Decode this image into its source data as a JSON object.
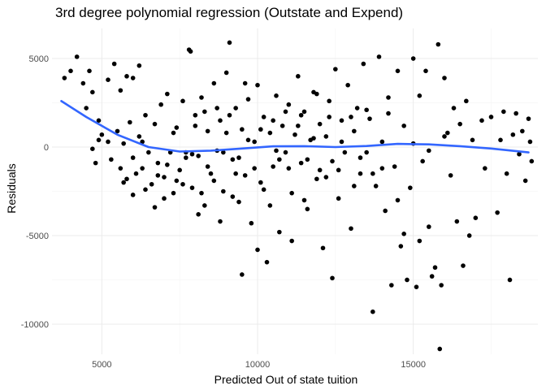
{
  "chart_data": {
    "type": "scatter",
    "title": "3rd degree polynomial regression (Outstate and Expend)",
    "xlabel": "Predicted Out of state tuition",
    "ylabel": "Residuals",
    "xlim": [
      3400,
      19000
    ],
    "ylim": [
      -11700,
      6700
    ],
    "x_ticks": [
      5000,
      10000,
      15000
    ],
    "x_tick_labels": [
      "5000",
      "10000",
      "15000"
    ],
    "y_ticks": [
      -10000,
      -5000,
      0,
      5000
    ],
    "y_tick_labels": [
      "-10000",
      "-5000",
      "0",
      "5000"
    ],
    "grid": true,
    "point_color": "#000000",
    "smooth_color": "#3366FF",
    "smooth_line": {
      "x": [
        3700,
        4500,
        5500,
        6500,
        7500,
        8500,
        9500,
        10500,
        11500,
        12500,
        13500,
        14500,
        15500,
        16500,
        17500,
        18700
      ],
      "y": [
        2600,
        1700,
        700,
        0,
        -250,
        -200,
        -80,
        40,
        50,
        0,
        60,
        180,
        150,
        50,
        -80,
        -300
      ]
    },
    "points": [
      [
        3800,
        3900
      ],
      [
        4000,
        4300
      ],
      [
        4200,
        5100
      ],
      [
        4400,
        3600
      ],
      [
        4600,
        4300
      ],
      [
        4700,
        3100
      ],
      [
        4900,
        1500
      ],
      [
        5000,
        700
      ],
      [
        5200,
        3800
      ],
      [
        5400,
        4700
      ],
      [
        5600,
        3200
      ],
      [
        5800,
        4000
      ],
      [
        6000,
        3900
      ],
      [
        6200,
        4600
      ],
      [
        4500,
        2200
      ],
      [
        4700,
        -100
      ],
      [
        4800,
        -900
      ],
      [
        4900,
        400
      ],
      [
        5200,
        300
      ],
      [
        5300,
        -700
      ],
      [
        5500,
        900
      ],
      [
        5600,
        -1200
      ],
      [
        5700,
        200
      ],
      [
        5800,
        -1800
      ],
      [
        5900,
        1400
      ],
      [
        6000,
        -2700
      ],
      [
        6100,
        -1500
      ],
      [
        6200,
        600
      ],
      [
        6300,
        -1200
      ],
      [
        6400,
        1800
      ],
      [
        6500,
        -300
      ],
      [
        6600,
        -2100
      ],
      [
        6700,
        1300
      ],
      [
        6800,
        -900
      ],
      [
        6900,
        2400
      ],
      [
        7000,
        -1700
      ],
      [
        7100,
        3000
      ],
      [
        7200,
        -300
      ],
      [
        7300,
        -2600
      ],
      [
        7400,
        1100
      ],
      [
        7500,
        -1300
      ],
      [
        7600,
        2600
      ],
      [
        7700,
        -600
      ],
      [
        7800,
        5500
      ],
      [
        7850,
        5400
      ],
      [
        7900,
        -2300
      ],
      [
        8000,
        1800
      ],
      [
        8100,
        -500
      ],
      [
        8200,
        2800
      ],
      [
        8300,
        -3300
      ],
      [
        8400,
        900
      ],
      [
        8500,
        -1500
      ],
      [
        8600,
        3600
      ],
      [
        8700,
        -200
      ],
      [
        8800,
        1500
      ],
      [
        8900,
        -2500
      ],
      [
        9000,
        4200
      ],
      [
        9100,
        5900
      ],
      [
        9200,
        -700
      ],
      [
        9300,
        2200
      ],
      [
        9400,
        -3100
      ],
      [
        9500,
        1000
      ],
      [
        9600,
        -1600
      ],
      [
        9700,
        2700
      ],
      [
        9800,
        -4300
      ],
      [
        9900,
        300
      ],
      [
        10000,
        3500
      ],
      [
        10100,
        -2000
      ],
      [
        10200,
        1700
      ],
      [
        10300,
        -6500
      ],
      [
        10400,
        800
      ],
      [
        10500,
        -1100
      ],
      [
        10600,
        2900
      ],
      [
        10700,
        -4800
      ],
      [
        10800,
        1200
      ],
      [
        10900,
        -300
      ],
      [
        11000,
        2400
      ],
      [
        11100,
        -2600
      ],
      [
        11200,
        700
      ],
      [
        11300,
        4000
      ],
      [
        11400,
        -900
      ],
      [
        11500,
        2000
      ],
      [
        11600,
        -3500
      ],
      [
        11700,
        400
      ],
      [
        11800,
        3100
      ],
      [
        11900,
        -1800
      ],
      [
        12000,
        1300
      ],
      [
        12100,
        -5700
      ],
      [
        12200,
        600
      ],
      [
        12300,
        2600
      ],
      [
        12400,
        -800
      ],
      [
        12500,
        4400
      ],
      [
        12600,
        -2900
      ],
      [
        12700,
        1500
      ],
      [
        12800,
        -300
      ],
      [
        12900,
        3500
      ],
      [
        13000,
        -4600
      ],
      [
        13100,
        900
      ],
      [
        13200,
        2200
      ],
      [
        13300,
        -1500
      ],
      [
        13400,
        4700
      ],
      [
        13500,
        -300
      ],
      [
        13600,
        1600
      ],
      [
        13700,
        -9300
      ],
      [
        13800,
        -2200
      ],
      [
        13900,
        5100
      ],
      [
        14000,
        300
      ],
      [
        14100,
        -3600
      ],
      [
        14200,
        2800
      ],
      [
        14300,
        -7800
      ],
      [
        14400,
        -1100
      ],
      [
        14500,
        4300
      ],
      [
        14600,
        -5600
      ],
      [
        14700,
        1200
      ],
      [
        14800,
        -7500
      ],
      [
        14900,
        -2300
      ],
      [
        15000,
        5000
      ],
      [
        15100,
        -7900
      ],
      [
        15200,
        2900
      ],
      [
        15300,
        -800
      ],
      [
        15400,
        4300
      ],
      [
        15500,
        -4500
      ],
      [
        15600,
        -7300
      ],
      [
        15700,
        -6800
      ],
      [
        15800,
        5800
      ],
      [
        15850,
        -11400
      ],
      [
        15900,
        -7800
      ],
      [
        16000,
        3900
      ],
      [
        16100,
        800
      ],
      [
        16200,
        -1600
      ],
      [
        16300,
        2200
      ],
      [
        16400,
        -4200
      ],
      [
        16500,
        1300
      ],
      [
        16600,
        -6700
      ],
      [
        16700,
        2600
      ],
      [
        16800,
        -5000
      ],
      [
        16900,
        400
      ],
      [
        17000,
        -4000
      ],
      [
        17200,
        1500
      ],
      [
        17300,
        -1200
      ],
      [
        17500,
        1700
      ],
      [
        17700,
        -3700
      ],
      [
        17800,
        400
      ],
      [
        17900,
        2000
      ],
      [
        18000,
        -1500
      ],
      [
        18100,
        -7500
      ],
      [
        18200,
        700
      ],
      [
        18300,
        1900
      ],
      [
        18400,
        -400
      ],
      [
        18500,
        900
      ],
      [
        18600,
        -1900
      ],
      [
        18700,
        1600
      ],
      [
        18750,
        300
      ],
      [
        18800,
        -800
      ],
      [
        6300,
        300
      ],
      [
        6700,
        -3400
      ],
      [
        7100,
        -1000
      ],
      [
        7300,
        800
      ],
      [
        7600,
        -2100
      ],
      [
        7900,
        -400
      ],
      [
        8100,
        -3800
      ],
      [
        8300,
        2000
      ],
      [
        8600,
        -1900
      ],
      [
        8800,
        -4200
      ],
      [
        9000,
        800
      ],
      [
        9200,
        -2800
      ],
      [
        9400,
        -600
      ],
      [
        9600,
        3600
      ],
      [
        9900,
        -1200
      ],
      [
        10100,
        1000
      ],
      [
        10400,
        -3300
      ],
      [
        10600,
        -200
      ],
      [
        10900,
        2000
      ],
      [
        11100,
        -5300
      ],
      [
        11400,
        1800
      ],
      [
        11600,
        -700
      ],
      [
        11900,
        3000
      ],
      [
        12200,
        -1700
      ],
      [
        12400,
        -7400
      ],
      [
        12700,
        300
      ],
      [
        13100,
        -2200
      ],
      [
        13500,
        2100
      ],
      [
        14000,
        -1200
      ],
      [
        14500,
        -3000
      ],
      [
        15000,
        200
      ],
      [
        15500,
        -200
      ],
      [
        16000,
        600
      ],
      [
        7000,
        -2900
      ],
      [
        7400,
        -1900
      ],
      [
        7700,
        -300
      ],
      [
        8000,
        1200
      ],
      [
        8200,
        -2600
      ],
      [
        8400,
        -1100
      ],
      [
        8700,
        2200
      ],
      [
        8900,
        -300
      ],
      [
        9100,
        1800
      ],
      [
        9300,
        -1500
      ],
      [
        9500,
        -7200
      ],
      [
        9700,
        400
      ],
      [
        10000,
        -5800
      ],
      [
        10200,
        -2400
      ],
      [
        10500,
        1500
      ],
      [
        10700,
        -700
      ],
      [
        11000,
        -1200
      ],
      [
        11300,
        1200
      ],
      [
        11500,
        -3000
      ],
      [
        11800,
        500
      ],
      [
        12000,
        -1300
      ],
      [
        12300,
        1700
      ],
      [
        12600,
        -1300
      ],
      [
        13000,
        1700
      ],
      [
        13300,
        -600
      ],
      [
        13700,
        -1500
      ],
      [
        14200,
        1900
      ],
      [
        14700,
        -4900
      ],
      [
        15200,
        -5300
      ],
      [
        5700,
        -2000
      ],
      [
        6000,
        -600
      ],
      [
        6400,
        -2400
      ],
      [
        6800,
        -1600
      ]
    ]
  }
}
